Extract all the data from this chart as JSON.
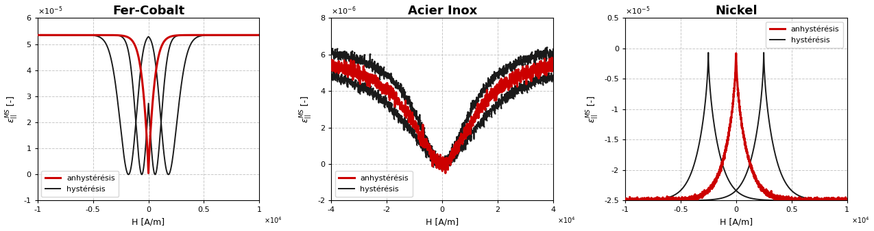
{
  "plots": [
    {
      "title": "Fer-Cobalt",
      "xlabel": "H [A/m]",
      "xlim": [
        -10000,
        10000
      ],
      "ylim": [
        -1e-05,
        6e-05
      ],
      "yticks": [
        -1e-05,
        0,
        1e-05,
        2e-05,
        3e-05,
        4e-05,
        5e-05,
        6e-05
      ],
      "xticks": [
        -10000,
        -5000,
        0,
        5000,
        10000
      ],
      "xtick_labels": [
        "-1",
        "-0.5",
        "0",
        "0.5",
        "1"
      ],
      "ytick_labels": [
        "-1",
        "0",
        "1",
        "2",
        "3",
        "4",
        "5",
        "6"
      ],
      "scale_x_label": "×10^4",
      "scale_y_label": "×10^{-5}",
      "legend_loc": "lower left"
    },
    {
      "title": "Acier Inox",
      "xlabel": "H [A/m]",
      "xlim": [
        -40000,
        40000
      ],
      "ylim": [
        -2e-06,
        8e-06
      ],
      "yticks": [
        -2e-06,
        0,
        2e-06,
        4e-06,
        6e-06,
        8e-06
      ],
      "xticks": [
        -40000,
        -20000,
        0,
        20000,
        40000
      ],
      "xtick_labels": [
        "-4",
        "-2",
        "0",
        "2",
        "4"
      ],
      "ytick_labels": [
        "-2",
        "0",
        "2",
        "4",
        "6",
        "8"
      ],
      "scale_x_label": "×10^4",
      "scale_y_label": "×10^{-6}",
      "legend_loc": "lower left"
    },
    {
      "title": "Nickel",
      "xlabel": "H [A/m]",
      "xlim": [
        -10000,
        10000
      ],
      "ylim": [
        -2.5e-05,
        5e-06
      ],
      "yticks": [
        -2.5e-05,
        -2e-05,
        -1.5e-05,
        -1e-05,
        -5e-06,
        0,
        5e-06
      ],
      "xticks": [
        -10000,
        -5000,
        0,
        5000,
        10000
      ],
      "xtick_labels": [
        "-1",
        "-0.5",
        "0",
        "0.5",
        "1"
      ],
      "ytick_labels": [
        "-2.5",
        "-2",
        "-1.5",
        "-1",
        "-0.5",
        "0",
        "0.5"
      ],
      "scale_x_label": "×10^4",
      "scale_y_label": "×10^{-5}",
      "legend_loc": "upper right"
    }
  ],
  "colors": {
    "anhy": "#cc0000",
    "hyst": "#1a1a1a"
  },
  "anhy_lw": 2.2,
  "hyst_lw": 1.4,
  "bg_color": "#ffffff",
  "grid_color": "#c8c8c8",
  "legend_labels": [
    "anhystérésis",
    "hystérésis"
  ]
}
